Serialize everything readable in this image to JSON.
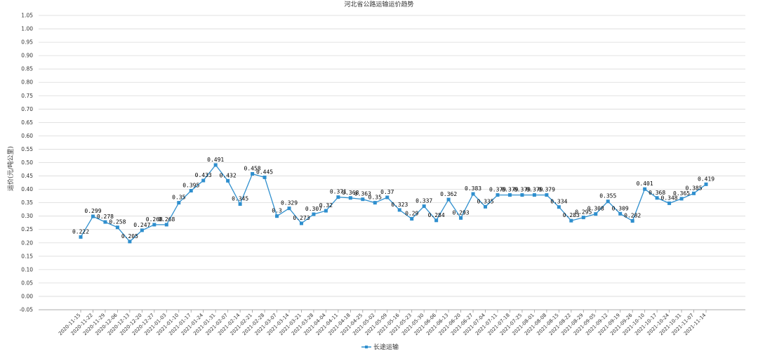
{
  "chart_data": {
    "type": "line",
    "title": "河北省公路运输运价趋势",
    "ylabel": "运价(元/吨公里)",
    "xlabel": "",
    "ylim": [
      -0.05,
      1.05
    ],
    "ytick_step": 0.05,
    "grid": true,
    "legend_position": "bottom",
    "categories": [
      "2020-11-15",
      "2020-11-22",
      "2020-11-29",
      "2020-12-06",
      "2020-12-13",
      "2020-12-20",
      "2020-12-27",
      "2021-01-03",
      "2021-01-10",
      "2021-01-17",
      "2021-01-24",
      "2021-01-31",
      "2021-02-07",
      "2021-02-14",
      "2021-02-21",
      "2021-02-28",
      "2021-03-07",
      "2021-03-14",
      "2021-03-21",
      "2021-03-28",
      "2021-04-04",
      "2021-04-11",
      "2021-04-18",
      "2021-04-25",
      "2021-05-02",
      "2021-05-09",
      "2021-05-16",
      "2021-05-23",
      "2021-05-30",
      "2021-06-06",
      "2021-06-13",
      "2021-06-20",
      "2021-06-27",
      "2021-07-04",
      "2021-07-11",
      "2021-07-18",
      "2021-07-25",
      "2021-08-01",
      "2021-08-08",
      "2021-08-15",
      "2021-08-22",
      "2021-08-29",
      "2021-09-05",
      "2021-09-12",
      "2021-09-19",
      "2021-09-26",
      "2021-10-10",
      "2021-10-17",
      "2021-10-24",
      "2021-10-31",
      "2021-11-07",
      "2021-11-14"
    ],
    "series": [
      {
        "name": "长途运输",
        "color": "#2f8fce",
        "values": [
          0.222,
          0.299,
          0.278,
          0.258,
          0.205,
          0.247,
          0.268,
          0.268,
          0.35,
          0.395,
          0.433,
          0.491,
          0.432,
          0.345,
          0.458,
          0.445,
          0.3,
          0.329,
          0.273,
          0.307,
          0.32,
          0.371,
          0.368,
          0.363,
          0.35,
          0.37,
          0.323,
          0.29,
          0.337,
          0.284,
          0.362,
          0.293,
          0.383,
          0.335,
          0.379,
          0.379,
          0.379,
          0.379,
          0.379,
          0.334,
          0.283,
          0.295,
          0.308,
          0.355,
          0.309,
          0.282,
          0.401,
          0.368,
          0.348,
          0.365,
          0.385,
          0.419
        ],
        "data_labels": [
          "0.222",
          "0.299",
          "0.278",
          "0.258",
          "0.205",
          "0.247",
          "0.268",
          "0.268",
          "0.35",
          "0.395",
          "0.433",
          "0.491",
          "0.432",
          "0.345",
          "0.458",
          "0.445",
          "0.3",
          "0.329",
          "0.273",
          "0.307",
          "0.32",
          "0.371",
          "0.368",
          "0.363",
          "0.35",
          "0.37",
          "0.323",
          "0.29",
          "0.337",
          "0.284",
          "0.362",
          "0.293",
          "0.383",
          "0.335",
          "0.379",
          "0.379",
          "0.379",
          "0.379",
          "0.379",
          "0.334",
          "0.283",
          "0.295",
          "0.308",
          "0.355",
          "0.309",
          "0.282",
          "0.401",
          "0.368",
          "0.348",
          "0.365",
          "0.385",
          "0.419"
        ]
      }
    ]
  }
}
